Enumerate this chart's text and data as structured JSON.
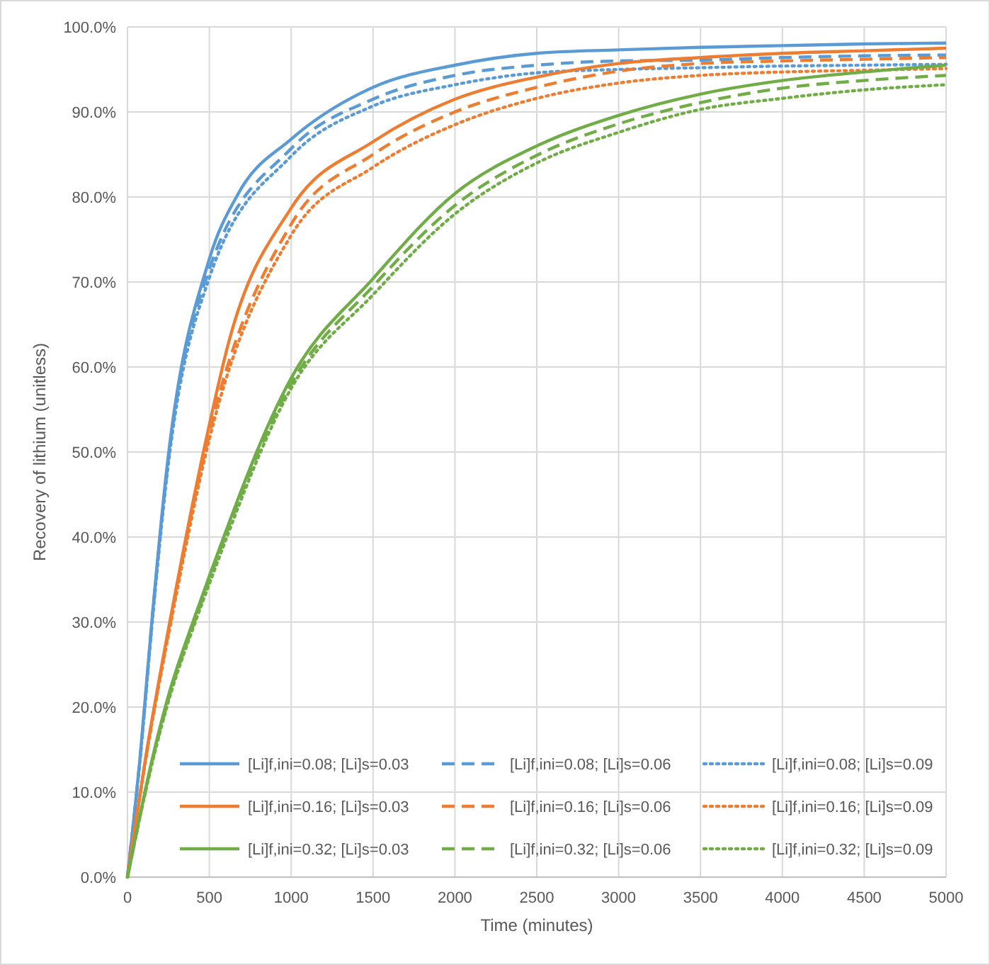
{
  "chart_data": {
    "type": "line",
    "xlabel": "Time (minutes)",
    "ylabel": "Recovery of lithium (unitless)",
    "xlim": [
      0,
      5000
    ],
    "xticks": [
      0,
      500,
      1000,
      1500,
      2000,
      2500,
      3000,
      3500,
      4000,
      4500,
      5000
    ],
    "ylim": [
      0,
      100
    ],
    "yticks": [
      {
        "value": 0,
        "label": "0.0%"
      },
      {
        "value": 10,
        "label": "10.0%"
      },
      {
        "value": 20,
        "label": "20.0%"
      },
      {
        "value": 30,
        "label": "30.0%"
      },
      {
        "value": 40,
        "label": "40.0%"
      },
      {
        "value": 50,
        "label": "50.0%"
      },
      {
        "value": 60,
        "label": "60.0%"
      },
      {
        "value": 70,
        "label": "70.0%"
      },
      {
        "value": 80,
        "label": "80.0%"
      },
      {
        "value": 90,
        "label": "90.0%"
      },
      {
        "value": 100,
        "label": "100.0%"
      }
    ],
    "grid": true,
    "legend": "bottom",
    "marker": "none",
    "series": [
      {
        "name": "[Li]f,ini=0.08; [Li]s=0.03",
        "color": "#5b9bd5",
        "line_style": "solid",
        "x": [
          0,
          78,
          153,
          240,
          500,
          677,
          1000,
          1500,
          2000,
          2500,
          3000,
          3500,
          4000,
          4500,
          5000
        ],
        "values": [
          0,
          14.3,
          31,
          48,
          72.7,
          80.4,
          86.8,
          92.9,
          95.5,
          96.9,
          97.3,
          97.6,
          97.8,
          98,
          98.1
        ]
      },
      {
        "name": "[Li]f,ini=0.08; [Li]s=0.06",
        "color": "#5b9bd5",
        "line_style": "dashed",
        "x": [
          0,
          78,
          153,
          240,
          500,
          1000,
          1500,
          2000,
          2500,
          3000,
          3500,
          4000,
          4500,
          5000
        ],
        "values": [
          0,
          14.2,
          30.7,
          47.5,
          71.5,
          85.7,
          91.5,
          94.3,
          95.5,
          96,
          96.1,
          96.4,
          96.6,
          96.7
        ]
      },
      {
        "name": "[Li]f,ini=0.08; [Li]s=0.09",
        "color": "#5b9bd5",
        "line_style": "dotted",
        "x": [
          0,
          78,
          153,
          240,
          500,
          1000,
          1500,
          2000,
          2500,
          3000,
          3500,
          4000,
          4500,
          5000
        ],
        "values": [
          0,
          14,
          30.3,
          47,
          70.5,
          84.8,
          90.7,
          93.2,
          94.6,
          95,
          95.2,
          95.4,
          95.5,
          95.6
        ]
      },
      {
        "name": "[Li]f,ini=0.16; [Li]s=0.03",
        "color": "#ed7d31",
        "line_style": "solid",
        "x": [
          0,
          113,
          268,
          500,
          614,
          1000,
          1500,
          2000,
          2500,
          3000,
          3500,
          4000,
          4500,
          5000
        ],
        "values": [
          0,
          14.3,
          31,
          53.2,
          62.6,
          78.7,
          86.5,
          91.5,
          94.1,
          95.7,
          96.4,
          96.9,
          97.2,
          97.5
        ]
      },
      {
        "name": "[Li]f,ini=0.16; [Li]s=0.06",
        "color": "#ed7d31",
        "line_style": "dashed",
        "x": [
          0,
          113,
          268,
          500,
          1000,
          1500,
          2000,
          2500,
          3000,
          3500,
          4000,
          4500,
          5000
        ],
        "values": [
          0,
          14.1,
          30.6,
          52.3,
          76.8,
          85,
          90,
          92.9,
          94.8,
          95.7,
          96,
          96.2,
          96.4
        ]
      },
      {
        "name": "[Li]f,ini=0.16; [Li]s=0.09",
        "color": "#ed7d31",
        "line_style": "dotted",
        "x": [
          0,
          113,
          268,
          500,
          1000,
          1500,
          2000,
          2500,
          3000,
          3500,
          4000,
          4500,
          5000
        ],
        "values": [
          0,
          14,
          30.2,
          51.5,
          75.5,
          83.5,
          88.5,
          91.6,
          93.4,
          94.3,
          94.7,
          94.9,
          95.1
        ]
      },
      {
        "name": "[Li]f,ini=0.32; [Li]s=0.03",
        "color": "#70ad47",
        "line_style": "solid",
        "x": [
          0,
          156,
          245,
          418,
          500,
          1000,
          1500,
          2000,
          2500,
          3000,
          3500,
          4000,
          4500,
          5000
        ],
        "values": [
          0,
          14.3,
          21,
          31,
          35.4,
          58.7,
          70.4,
          80.4,
          86,
          89.6,
          92.1,
          93.7,
          94.7,
          95.5
        ]
      },
      {
        "name": "[Li]f,ini=0.32; [Li]s=0.06",
        "color": "#70ad47",
        "line_style": "dashed",
        "x": [
          0,
          156,
          245,
          418,
          500,
          1000,
          1500,
          2000,
          2500,
          3000,
          3500,
          4000,
          4500,
          5000
        ],
        "values": [
          0,
          14,
          20.6,
          30.5,
          35,
          58,
          69.5,
          79,
          84.9,
          88.6,
          91.1,
          92.8,
          93.7,
          94.3
        ]
      },
      {
        "name": "[Li]f,ini=0.32; [Li]s=0.09",
        "color": "#70ad47",
        "line_style": "dotted",
        "x": [
          0,
          156,
          245,
          418,
          500,
          1000,
          1500,
          2000,
          2500,
          3000,
          3500,
          4000,
          4500,
          5000
        ],
        "values": [
          0,
          13.8,
          20.3,
          30.2,
          34.5,
          57.5,
          68.5,
          78,
          84,
          87.6,
          90.3,
          91.6,
          92.6,
          93.2
        ]
      }
    ]
  }
}
